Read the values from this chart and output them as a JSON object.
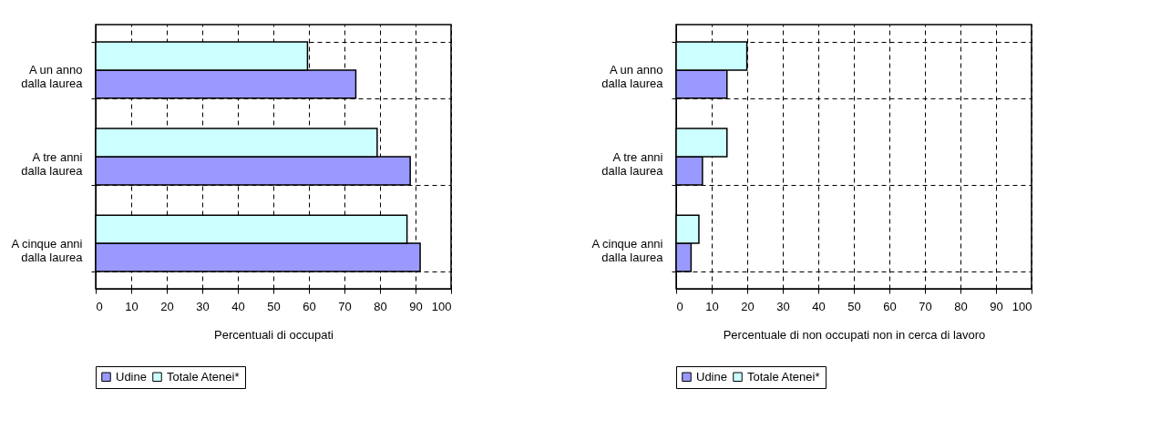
{
  "chart_data": [
    {
      "type": "bar",
      "orientation": "horizontal",
      "xlabel": "Percentuali di occupati",
      "categories": [
        "A un anno dalla laurea",
        "A tre anni dalla laurea",
        "A cinque anni dalla laurea"
      ],
      "series": [
        {
          "name": "Udine",
          "color": "#9999ff",
          "values": [
            73.2,
            88.5,
            91.3
          ]
        },
        {
          "name": "Totale Atenei*",
          "color": "#ccffff",
          "values": [
            59.6,
            79.2,
            87.6
          ]
        }
      ],
      "xlim": [
        0,
        100
      ],
      "xticks": [
        0,
        10,
        20,
        30,
        40,
        50,
        60,
        70,
        80,
        90,
        100
      ],
      "grid": true,
      "legend": "bottom"
    },
    {
      "type": "bar",
      "orientation": "horizontal",
      "xlabel": "Percentuale di non occupati non in cerca di lavoro",
      "categories": [
        "A un anno dalla laurea",
        "A tre anni dalla laurea",
        "A cinque anni dalla laurea"
      ],
      "series": [
        {
          "name": "Udine",
          "color": "#9999ff",
          "values": [
            14.3,
            7.4,
            4.2
          ]
        },
        {
          "name": "Totale Atenei*",
          "color": "#ccffff",
          "values": [
            19.9,
            14.3,
            6.4
          ]
        }
      ],
      "xlim": [
        0,
        100
      ],
      "xticks": [
        0,
        10,
        20,
        30,
        40,
        50,
        60,
        70,
        80,
        90,
        100
      ],
      "grid": true,
      "legend": "bottom"
    }
  ]
}
